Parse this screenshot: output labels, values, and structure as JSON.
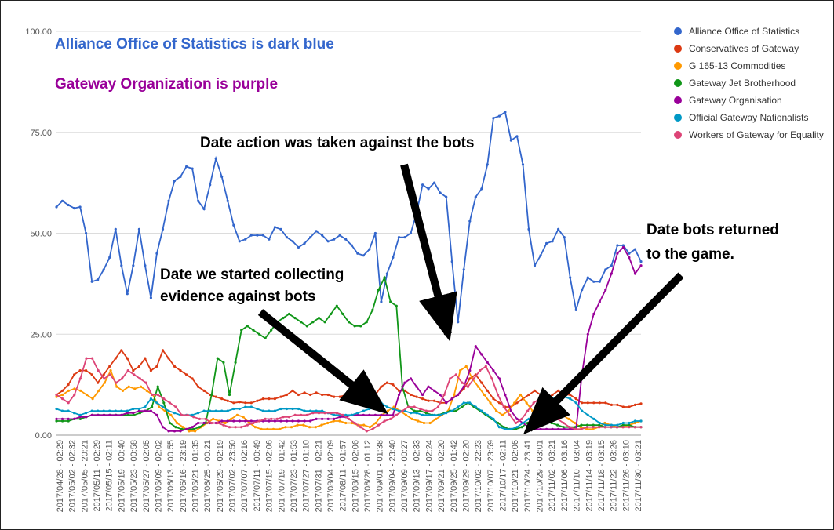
{
  "chart_data": {
    "type": "line",
    "ylim": [
      0,
      100
    ],
    "y_ticks": [
      "100.00",
      "75.00",
      "50.00",
      "25.00",
      "0.00"
    ],
    "grid": "horizontal",
    "legend_position": "top-right",
    "x_tick_labels": [
      "2017/04/28 - 02:29",
      "2017/05/02 - 02:32",
      "2017/05/05 - 20:21",
      "2017/05/11 - 02:29",
      "2017/05/15 - 02:11",
      "2017/05/19 - 00:40",
      "2017/05/23 - 00:58",
      "2017/05/27 - 02:05",
      "2017/06/09 - 02:02",
      "2017/06/13 - 00:55",
      "2017/06/16 - 23:19",
      "2017/06/21 - 01:35",
      "2017/06/25 - 00:21",
      "2017/06/29 - 02:19",
      "2017/07/02 - 23:50",
      "2017/07/07 - 02:16",
      "2017/07/11 - 00:49",
      "2017/07/15 - 02:06",
      "2017/07/19 - 01:42",
      "2017/07/23 - 01:53",
      "2017/07/27 - 01:10",
      "2017/07/31 - 02:21",
      "2017/08/04 - 02:09",
      "2017/08/11 - 01:57",
      "2017/08/15 - 02:06",
      "2017/08/28 - 01:12",
      "2017/09/01 - 01:38",
      "2017/09/04 - 23:40",
      "2017/09/09 - 00:27",
      "2017/09/13 - 02:33",
      "2017/09/17 - 02:24",
      "2017/09/21 - 02:20",
      "2017/09/25 - 01:42",
      "2017/09/29 - 02:20",
      "2017/10/02 - 22:23",
      "2017/10/07 - 23:59",
      "2017/10/17 - 02:11",
      "2017/10/21 - 02:06",
      "2017/10/24 - 23:41",
      "2017/10/29 - 03:01",
      "2017/11/02 - 03:21",
      "2017/11/06 - 03:16",
      "2017/11/10 - 03:04",
      "2017/11/14 - 03:19",
      "2017/11/18 - 03:15",
      "2017/11/22 - 03:26",
      "2017/11/26 - 03:10",
      "2017/11/30 - 03:21"
    ],
    "series": [
      {
        "name": "Alliance Office of Statistics",
        "color": "#3366cc",
        "values": [
          56.5,
          58,
          57,
          56.2,
          56.5,
          50,
          38,
          38.5,
          41,
          44,
          51,
          42,
          35,
          42,
          51,
          42,
          34,
          45,
          51,
          58,
          63,
          64,
          66.5,
          66,
          58,
          56,
          62,
          68.5,
          64,
          58,
          52,
          48,
          48.5,
          49.5,
          49.5,
          49.5,
          48.5,
          51.5,
          51,
          49,
          48,
          46.5,
          47.5,
          49,
          50.5,
          49.5,
          48,
          48.5,
          49.5,
          48.5,
          47,
          45,
          44.5,
          46,
          50,
          33,
          40,
          44,
          49,
          49,
          50,
          55,
          62,
          61,
          62.5,
          60,
          59,
          43,
          28,
          41,
          53,
          59,
          61,
          67,
          78.5,
          79,
          80,
          73,
          74,
          67,
          51,
          42,
          44.5,
          47.5,
          48,
          51,
          49,
          39,
          31,
          36,
          39,
          38,
          38,
          41,
          42,
          47,
          47,
          45,
          46,
          43
        ]
      },
      {
        "name": "Conservatives of Gateway",
        "color": "#dc3912",
        "values": [
          10,
          11,
          12.5,
          15,
          16,
          16,
          15,
          13,
          15,
          17,
          19,
          21,
          19,
          16,
          17,
          19,
          16,
          17,
          21,
          19,
          17,
          16,
          15,
          14,
          12,
          11,
          10,
          9.5,
          9,
          8.5,
          8,
          8.2,
          8,
          8,
          8.5,
          9,
          9,
          9,
          9.5,
          10,
          11,
          10,
          10.5,
          10,
          10.5,
          10,
          10,
          9.5,
          9.5,
          10,
          9,
          9.5,
          9,
          8.5,
          10,
          12,
          13,
          12.5,
          11,
          11,
          10,
          9.5,
          9,
          8.5,
          8.5,
          8,
          8,
          9,
          10,
          11.5,
          14,
          15,
          13,
          11,
          9,
          8,
          7,
          7,
          8,
          9,
          10,
          11,
          10,
          9,
          10,
          11,
          10,
          10,
          9,
          8,
          8,
          8,
          8,
          8,
          7.5,
          7.5,
          7,
          7,
          7.5,
          7.8
        ]
      },
      {
        "name": "G 165-13 Commodities",
        "color": "#ff9900",
        "values": [
          9.5,
          10,
          11,
          11.5,
          11,
          10,
          9,
          11,
          13,
          16,
          12,
          11,
          12,
          11.5,
          12,
          11,
          10,
          7,
          6,
          5,
          3,
          2,
          1,
          1,
          2,
          3,
          4,
          3.5,
          3,
          4,
          5,
          4.5,
          3,
          2,
          1.5,
          1.5,
          1.5,
          1.5,
          2,
          2,
          2.5,
          2.5,
          2,
          2,
          2.5,
          3,
          3.5,
          3.5,
          3,
          3,
          2.5,
          2.5,
          2,
          3,
          5,
          6,
          7,
          6,
          5,
          4,
          3.5,
          3,
          3,
          4,
          5,
          6,
          10,
          16,
          17,
          14,
          12,
          10,
          8,
          6,
          5,
          6,
          8,
          10,
          8,
          6,
          5,
          4,
          5,
          6,
          5,
          4,
          3,
          2,
          1.5,
          1.5,
          2,
          3,
          2.5,
          2,
          2,
          2.5,
          3,
          3.5
        ]
      },
      {
        "name": "Gateway Jet Brotherhood",
        "color": "#109618",
        "values": [
          3.5,
          3.5,
          3.5,
          4,
          4,
          4.5,
          5,
          5,
          5,
          5,
          5,
          5,
          5,
          5,
          5.5,
          6,
          7,
          12,
          8,
          3,
          2,
          1.5,
          1.5,
          1.5,
          2,
          3,
          10,
          19,
          18,
          10,
          18,
          26,
          27,
          26,
          25,
          24,
          26,
          28,
          29,
          30,
          29,
          28,
          27,
          28,
          29,
          28,
          30,
          32,
          30,
          28,
          27,
          27,
          28,
          31,
          36,
          39,
          33,
          32,
          12,
          7,
          6,
          6,
          5.5,
          5,
          5,
          5.5,
          6,
          6,
          7,
          8,
          7,
          6,
          5,
          4,
          3,
          2,
          1.5,
          1.5,
          2,
          3,
          3.5,
          4,
          3.5,
          3,
          2.5,
          2,
          2,
          2,
          2.5,
          2.5,
          2.5,
          2.5,
          2,
          2,
          2,
          2.5,
          2.5,
          2,
          2
        ]
      },
      {
        "name": "Gateway Organisation",
        "color": "#990099",
        "values": [
          4,
          4,
          4,
          4,
          4.5,
          4.5,
          5,
          5,
          5,
          5,
          5,
          5,
          5.5,
          5.5,
          6,
          6,
          6,
          5,
          2,
          1,
          1,
          1,
          1.5,
          2,
          3,
          3,
          3,
          3,
          3.5,
          3.5,
          3.5,
          3.5,
          3.5,
          3.5,
          3.5,
          3.5,
          3.5,
          3.5,
          3.5,
          3.5,
          3.5,
          3.5,
          3.5,
          3.5,
          4,
          4,
          4,
          4,
          4.5,
          4.5,
          5,
          5,
          5,
          5,
          5,
          5,
          5,
          5,
          10,
          13,
          14,
          12,
          10,
          12,
          11,
          10,
          8,
          9,
          10,
          12,
          16,
          22,
          20,
          18,
          16,
          14,
          10,
          6,
          4,
          3,
          2,
          1.5,
          1.5,
          1.5,
          1.5,
          1.5,
          1.5,
          1.5,
          1.5,
          15,
          25,
          30,
          33,
          36,
          40,
          45,
          46.5,
          44,
          40,
          42
        ]
      },
      {
        "name": "Official Gateway Nationalists",
        "color": "#0099c6",
        "values": [
          6.5,
          6,
          6,
          5.5,
          5,
          5.5,
          6,
          6,
          6,
          6,
          6,
          6,
          6,
          6.5,
          6.5,
          7,
          9,
          8,
          7,
          6,
          5.5,
          5,
          5,
          5,
          5.5,
          6,
          6,
          6,
          6,
          6,
          6.5,
          6.5,
          7,
          7,
          6.5,
          6,
          6,
          6,
          6.5,
          6.5,
          6.5,
          6.5,
          6,
          6,
          6,
          6,
          5.5,
          5,
          5,
          5,
          5,
          5.5,
          6,
          6.5,
          7,
          8,
          7,
          6.5,
          6,
          6,
          5.5,
          5.5,
          5,
          5,
          5,
          5,
          5.5,
          6,
          7,
          8,
          8,
          7,
          6,
          5,
          4,
          2,
          1.5,
          1.5,
          2,
          3,
          4,
          5,
          7,
          8,
          9,
          9.5,
          9.5,
          9,
          8,
          6,
          5,
          4,
          3,
          2.5,
          2.5,
          2.5,
          3,
          3,
          3.5,
          3.5
        ]
      },
      {
        "name": "Workers of Gateway for Equality",
        "color": "#dd4477",
        "values": [
          10,
          9,
          8,
          10,
          14,
          19,
          19,
          16,
          14,
          15,
          13,
          14,
          16,
          15,
          14,
          13,
          10,
          10,
          9,
          8,
          7,
          5,
          5,
          4.5,
          4,
          4,
          3,
          3,
          2.5,
          2,
          2,
          2,
          2.5,
          3,
          3.5,
          4,
          4,
          4,
          4.5,
          4.5,
          5,
          5,
          5,
          5.5,
          5.5,
          5.5,
          5.5,
          5.5,
          5,
          4,
          3,
          2,
          1,
          1.5,
          2.5,
          3.5,
          4,
          5,
          6,
          7,
          7,
          6.5,
          6,
          6,
          7,
          10,
          14,
          15,
          13,
          12,
          14,
          16,
          17,
          14,
          10,
          7,
          5,
          3,
          4,
          6,
          8,
          9,
          8,
          6,
          4,
          3,
          2,
          1.5,
          1.5,
          2,
          2,
          2,
          2,
          2,
          2,
          2,
          2,
          2,
          2
        ]
      }
    ]
  },
  "legend": [
    {
      "label": "Alliance Office of Statistics",
      "color": "#3366cc"
    },
    {
      "label": "Conservatives of Gateway",
      "color": "#dc3912"
    },
    {
      "label": "G 165-13 Commodities",
      "color": "#ff9900"
    },
    {
      "label": "Gateway Jet Brotherhood",
      "color": "#109618"
    },
    {
      "label": "Gateway Organisation",
      "color": "#990099"
    },
    {
      "label": "Official Gateway Nationalists",
      "color": "#0099c6"
    },
    {
      "label": "Workers of Gateway for Equality",
      "color": "#dd4477"
    }
  ],
  "annotations": {
    "title_blue": "Alliance Office of Statistics is dark blue",
    "title_blue_color": "#3366cc",
    "title_purple": "Gateway Organization is purple",
    "title_purple_color": "#990099",
    "collect_line1": "Date we started collecting",
    "collect_line2": "evidence against bots",
    "action": "Date action was taken against the bots",
    "returned_line1": "Date bots returned",
    "returned_line2": "to the game."
  }
}
